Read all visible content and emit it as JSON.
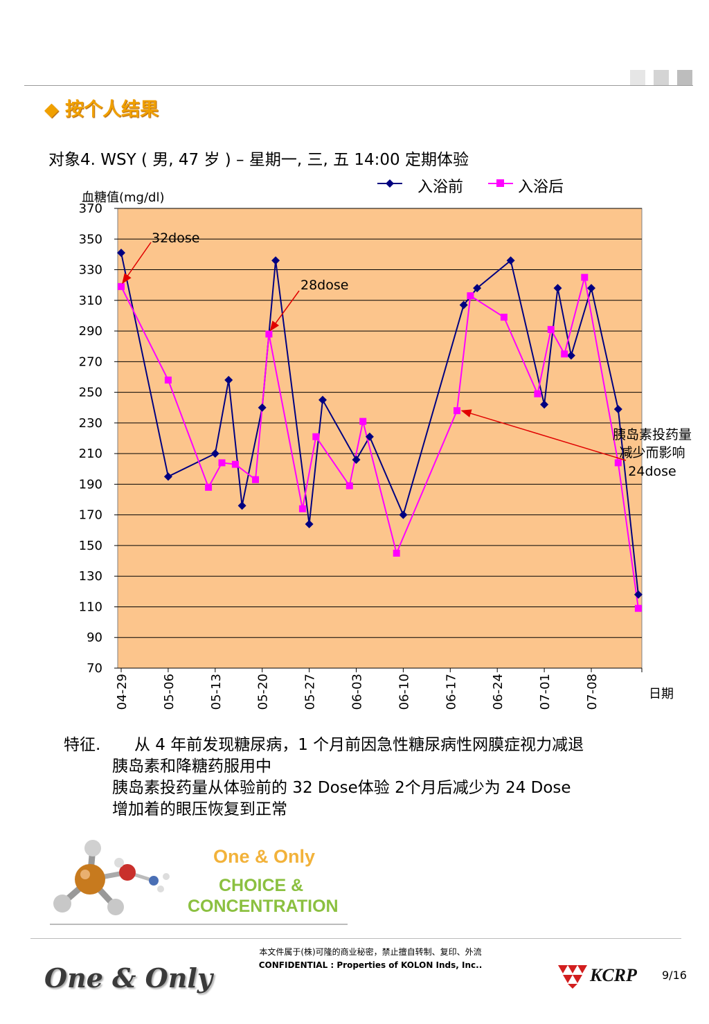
{
  "header": {
    "section_title": "按个人结果",
    "subject_line": "对象4. WSY ( 男, 47 岁 ) – 星期一, 三, 五 14:00 定期体验"
  },
  "chart_data": {
    "type": "line",
    "ylabel": "血糖值(mg/dl)",
    "xlabel": "日期",
    "ylim": [
      70,
      370
    ],
    "yticks": [
      370,
      350,
      330,
      310,
      290,
      270,
      250,
      230,
      210,
      190,
      170,
      150,
      130,
      110,
      90,
      70
    ],
    "x_tick_labels": [
      "04-29",
      "05-06",
      "05-13",
      "05-20",
      "05-27",
      "06-03",
      "06-10",
      "06-17",
      "06-24",
      "07-01",
      "07-08"
    ],
    "x_start": "04-29",
    "grid": true,
    "legend_position": "top-right",
    "plot_background": "#FCC58C",
    "series": [
      {
        "name": "入浴前",
        "color": "#000080",
        "marker": "diamond",
        "points": [
          {
            "date": "04-29",
            "y": 341
          },
          {
            "date": "05-06",
            "y": 195
          },
          {
            "date": "05-13",
            "y": 210
          },
          {
            "date": "05-15",
            "y": 258
          },
          {
            "date": "05-17",
            "y": 176
          },
          {
            "date": "05-20",
            "y": 240
          },
          {
            "date": "05-22",
            "y": 336
          },
          {
            "date": "05-27",
            "y": 164
          },
          {
            "date": "05-29",
            "y": 245
          },
          {
            "date": "06-03",
            "y": 206
          },
          {
            "date": "06-05",
            "y": 221
          },
          {
            "date": "06-10",
            "y": 170
          },
          {
            "date": "06-19",
            "y": 307
          },
          {
            "date": "06-21",
            "y": 318
          },
          {
            "date": "06-26",
            "y": 336
          },
          {
            "date": "07-01",
            "y": 242
          },
          {
            "date": "07-03",
            "y": 318
          },
          {
            "date": "07-05",
            "y": 274
          },
          {
            "date": "07-08",
            "y": 318
          },
          {
            "date": "07-12",
            "y": 239
          },
          {
            "date": "07-15",
            "y": 118
          }
        ]
      },
      {
        "name": "入浴后",
        "color": "#FF00FF",
        "marker": "square",
        "points": [
          {
            "date": "04-29",
            "y": 319
          },
          {
            "date": "05-06",
            "y": 258
          },
          {
            "date": "05-12",
            "y": 188
          },
          {
            "date": "05-14",
            "y": 204
          },
          {
            "date": "05-16",
            "y": 203
          },
          {
            "date": "05-19",
            "y": 193
          },
          {
            "date": "05-21",
            "y": 288
          },
          {
            "date": "05-26",
            "y": 174
          },
          {
            "date": "05-28",
            "y": 221
          },
          {
            "date": "06-02",
            "y": 189
          },
          {
            "date": "06-04",
            "y": 231
          },
          {
            "date": "06-09",
            "y": 145
          },
          {
            "date": "06-18",
            "y": 238
          },
          {
            "date": "06-20",
            "y": 313
          },
          {
            "date": "06-25",
            "y": 299
          },
          {
            "date": "06-30",
            "y": 249
          },
          {
            "date": "07-02",
            "y": 291
          },
          {
            "date": "07-04",
            "y": 275
          },
          {
            "date": "07-07",
            "y": 325
          },
          {
            "date": "07-12",
            "y": 204
          },
          {
            "date": "07-15",
            "y": 109
          }
        ]
      }
    ],
    "annotations": [
      {
        "label": "32dose",
        "target_date": "04-29",
        "target_y": 319
      },
      {
        "label": "28dose",
        "target_date": "05-21",
        "target_y": 288
      },
      {
        "label": "胰岛素投药量",
        "label2": "减少而影响",
        "label3": "24dose",
        "target_date": "06-18",
        "target_y": 238
      }
    ]
  },
  "features": {
    "label": "特征.",
    "line1": "从 4 年前发现糖尿病，1 个月前因急性糖尿病性网膜症视力减退",
    "line2": "胰岛素和降糖药服用中",
    "line3": "胰岛素投药量从体验前的 32 Dose体验 2个月后减少为 24 Dose",
    "line4": "增加着的眼压恢复到正常"
  },
  "promo": {
    "line1": "One & Only",
    "line2": "CHOICE &",
    "line3": "CONCENTRATION"
  },
  "footer": {
    "confidential_cn": "本文件属于(株)可隆的商业秘密，禁止擅自转制、复印、外流",
    "confidential_en": "CONFIDENTIAL : Properties of KOLON Inds, Inc..",
    "tagline": "One & Only",
    "brand": "KCRP",
    "page": "9/16"
  }
}
